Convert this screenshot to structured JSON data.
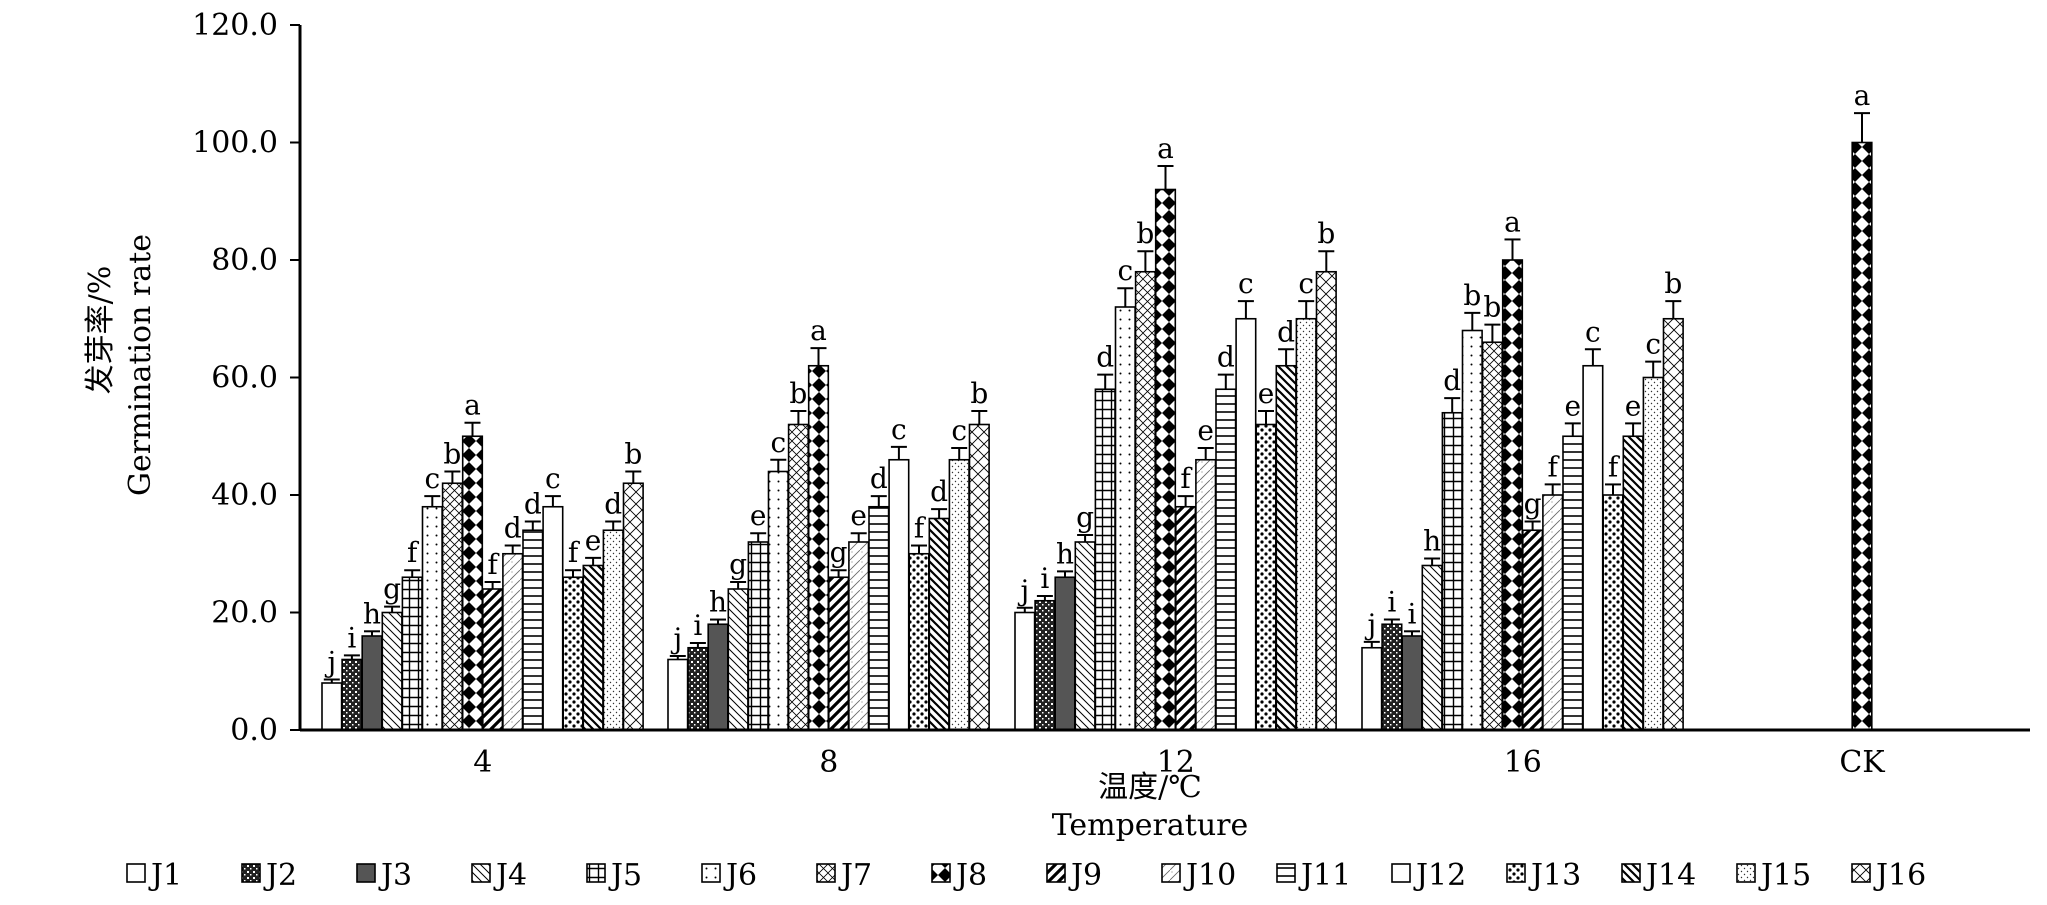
{
  "chart_data": {
    "type": "bar",
    "xlabel_cn": "温度/℃",
    "xlabel_en": "Temperature",
    "ylabel_cn": "发芽率/%",
    "ylabel_en": "Germination rate",
    "ylim": [
      0,
      120
    ],
    "yticks": [
      "0.0",
      "20.0",
      "40.0",
      "60.0",
      "80.0",
      "100.0",
      "120.0"
    ],
    "categories": [
      "4",
      "8",
      "12",
      "16",
      "CK"
    ],
    "legend_position": "bottom",
    "series": [
      {
        "name": "J1",
        "values": [
          8,
          12,
          20,
          14,
          null
        ],
        "errors": [
          0.6,
          0.6,
          0.8,
          1.0,
          null
        ],
        "letters": [
          "j",
          "j",
          "j",
          "j",
          null
        ]
      },
      {
        "name": "J2",
        "values": [
          12,
          14,
          22,
          18,
          null
        ],
        "errors": [
          0.7,
          0.8,
          0.8,
          0.8,
          null
        ],
        "letters": [
          "i",
          "i",
          "i",
          "i",
          null
        ]
      },
      {
        "name": "J3",
        "values": [
          16,
          18,
          26,
          16,
          null
        ],
        "errors": [
          0.8,
          0.8,
          1.0,
          0.8,
          null
        ],
        "letters": [
          "h",
          "h",
          "h",
          "i",
          null
        ]
      },
      {
        "name": "J4",
        "values": [
          20,
          24,
          32,
          28,
          null
        ],
        "errors": [
          1.0,
          1.2,
          1.2,
          1.2,
          null
        ],
        "letters": [
          "g",
          "g",
          "g",
          "h",
          null
        ]
      },
      {
        "name": "J5",
        "values": [
          26,
          32,
          58,
          54,
          null
        ],
        "errors": [
          1.2,
          1.5,
          2.5,
          2.5,
          null
        ],
        "letters": [
          "f",
          "e",
          "d",
          "d",
          null
        ]
      },
      {
        "name": "J6",
        "values": [
          38,
          44,
          72,
          68,
          null
        ],
        "errors": [
          1.8,
          2.0,
          3.2,
          3.0,
          null
        ],
        "letters": [
          "c",
          "c",
          "c",
          "b",
          null
        ]
      },
      {
        "name": "J7",
        "values": [
          42,
          52,
          78,
          66,
          null
        ],
        "errors": [
          2.0,
          2.3,
          3.5,
          3.0,
          null
        ],
        "letters": [
          "b",
          "b",
          "b",
          "b",
          null
        ]
      },
      {
        "name": "J8",
        "values": [
          50,
          62,
          92,
          80,
          100
        ],
        "errors": [
          2.3,
          3.0,
          4.0,
          3.5,
          5.0
        ],
        "letters": [
          "a",
          "a",
          "a",
          "a",
          "a"
        ]
      },
      {
        "name": "J9",
        "values": [
          24,
          26,
          38,
          34,
          null
        ],
        "errors": [
          1.2,
          1.2,
          1.8,
          1.5,
          null
        ],
        "letters": [
          "f",
          "g",
          "f",
          "g",
          null
        ]
      },
      {
        "name": "J10",
        "values": [
          30,
          32,
          46,
          40,
          null
        ],
        "errors": [
          1.4,
          1.5,
          2.0,
          1.8,
          null
        ],
        "letters": [
          "d",
          "e",
          "e",
          "f",
          null
        ]
      },
      {
        "name": "J11",
        "values": [
          34,
          38,
          58,
          50,
          null
        ],
        "errors": [
          1.5,
          1.8,
          2.5,
          2.2,
          null
        ],
        "letters": [
          "d",
          "d",
          "d",
          "e",
          null
        ]
      },
      {
        "name": "J12",
        "values": [
          38,
          46,
          70,
          62,
          null
        ],
        "errors": [
          1.8,
          2.2,
          3.0,
          2.8,
          null
        ],
        "letters": [
          "c",
          "c",
          "c",
          "c",
          null
        ]
      },
      {
        "name": "J13",
        "values": [
          26,
          30,
          52,
          40,
          null
        ],
        "errors": [
          1.2,
          1.4,
          2.3,
          1.8,
          null
        ],
        "letters": [
          "f",
          "f",
          "e",
          "f",
          null
        ]
      },
      {
        "name": "J14",
        "values": [
          28,
          36,
          62,
          50,
          null
        ],
        "errors": [
          1.3,
          1.6,
          2.8,
          2.2,
          null
        ],
        "letters": [
          "e",
          "d",
          "d",
          "e",
          null
        ]
      },
      {
        "name": "J15",
        "values": [
          34,
          46,
          70,
          60,
          null
        ],
        "errors": [
          1.5,
          2.0,
          3.0,
          2.7,
          null
        ],
        "letters": [
          "d",
          "c",
          "c",
          "c",
          null
        ]
      },
      {
        "name": "J16",
        "values": [
          42,
          52,
          78,
          70,
          null
        ],
        "errors": [
          2.0,
          2.3,
          3.5,
          3.0,
          null
        ],
        "letters": [
          "b",
          "b",
          "b",
          "b",
          null
        ]
      }
    ]
  }
}
